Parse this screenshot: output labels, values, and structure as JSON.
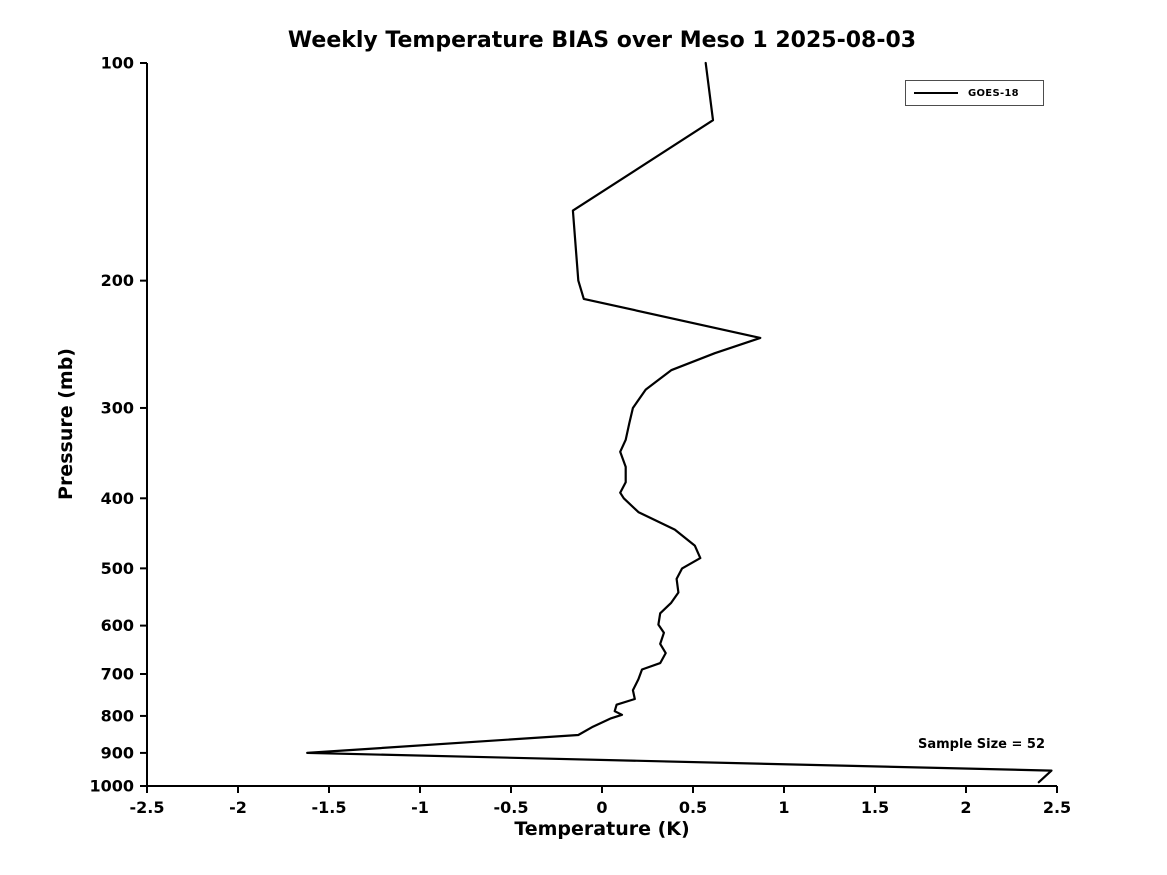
{
  "chart_data": {
    "type": "line",
    "title": "Weekly Temperature BIAS over Meso 1 2025-08-03",
    "xlabel": "Temperature (K)",
    "ylabel": "Pressure (mb)",
    "xlim": [
      -2.5,
      2.5
    ],
    "ylim": [
      100,
      1000
    ],
    "y_scale": "log",
    "y_inverted": true,
    "grid": false,
    "x_ticks": [
      -2.5,
      -2,
      -1.5,
      -1,
      -0.5,
      0,
      0.5,
      1,
      1.5,
      2,
      2.5
    ],
    "x_tick_labels": [
      "-2.5",
      "-2",
      "-1.5",
      "-1",
      "-0.5",
      "0",
      "0.5",
      "1",
      "1.5",
      "2",
      "2.5"
    ],
    "y_ticks": [
      100,
      200,
      300,
      400,
      500,
      600,
      700,
      800,
      900,
      1000
    ],
    "y_tick_labels": [
      "100",
      "200",
      "300",
      "400",
      "500",
      "600",
      "700",
      "800",
      "900",
      "1000"
    ],
    "legend": {
      "position": "top-right",
      "entries": [
        {
          "label": "GOES-18",
          "color": "#000000"
        }
      ]
    },
    "annotation": "Sample Size = 52",
    "line_color": "#000000",
    "series": [
      {
        "name": "GOES-18",
        "color": "#000000",
        "points_format": [
          "pressure_mb",
          "bias_K"
        ],
        "points": [
          [
            100,
            0.57
          ],
          [
            120,
            0.61
          ],
          [
            160,
            -0.16
          ],
          [
            200,
            -0.13
          ],
          [
            212,
            -0.1
          ],
          [
            240,
            0.87
          ],
          [
            252,
            0.62
          ],
          [
            266,
            0.38
          ],
          [
            283,
            0.24
          ],
          [
            300,
            0.17
          ],
          [
            315,
            0.15
          ],
          [
            332,
            0.13
          ],
          [
            345,
            0.1
          ],
          [
            362,
            0.13
          ],
          [
            380,
            0.13
          ],
          [
            393,
            0.1
          ],
          [
            400,
            0.12
          ],
          [
            418,
            0.2
          ],
          [
            442,
            0.4
          ],
          [
            465,
            0.51
          ],
          [
            484,
            0.54
          ],
          [
            500,
            0.44
          ],
          [
            517,
            0.41
          ],
          [
            540,
            0.42
          ],
          [
            558,
            0.38
          ],
          [
            577,
            0.32
          ],
          [
            598,
            0.31
          ],
          [
            614,
            0.34
          ],
          [
            636,
            0.32
          ],
          [
            655,
            0.35
          ],
          [
            676,
            0.32
          ],
          [
            690,
            0.22
          ],
          [
            712,
            0.2
          ],
          [
            737,
            0.17
          ],
          [
            758,
            0.18
          ],
          [
            772,
            0.08
          ],
          [
            788,
            0.07
          ],
          [
            797,
            0.11
          ],
          [
            806,
            0.05
          ],
          [
            828,
            -0.05
          ],
          [
            850,
            -0.13
          ],
          [
            900,
            -1.62
          ],
          [
            952,
            2.47
          ],
          [
            988,
            2.4
          ]
        ]
      }
    ]
  }
}
